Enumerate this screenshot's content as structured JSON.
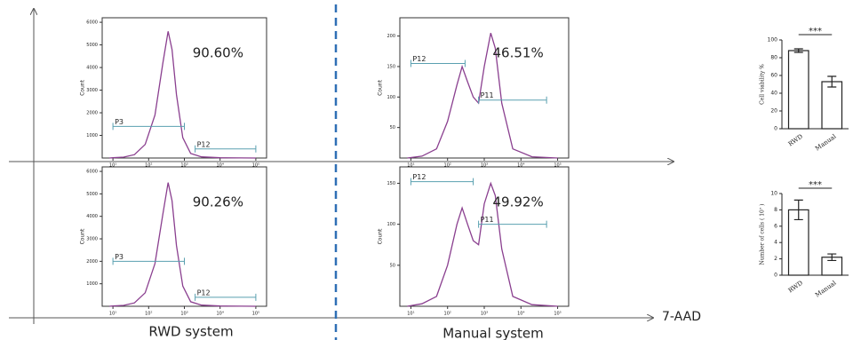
{
  "figure": {
    "x_axis_label": "7-AAD",
    "groups": [
      "RWD system",
      "Manual system"
    ]
  },
  "chart_data": [
    {
      "type": "line",
      "ylabel": "Count",
      "xscale": "log",
      "color": "#8a3f8f",
      "xlim": [
        5,
        200000
      ],
      "xticks": [
        {
          "value": 10,
          "label": "10¹"
        },
        {
          "value": 100,
          "label": "10²"
        },
        {
          "value": 1000,
          "label": "10³"
        },
        {
          "value": 10000,
          "label": "10⁴"
        },
        {
          "value": 100000,
          "label": "10⁵"
        }
      ],
      "ylim": [
        0,
        6200
      ],
      "yticks": [
        1000,
        2000,
        3000,
        4000,
        5000,
        6000
      ],
      "x": [
        8,
        10,
        20,
        40,
        80,
        150,
        250,
        350,
        450,
        600,
        900,
        1500,
        3000,
        10000,
        100000
      ],
      "values": [
        0,
        10,
        40,
        150,
        600,
        1900,
        4200,
        5600,
        4800,
        2800,
        900,
        200,
        50,
        10,
        0
      ],
      "gates": [
        {
          "label": "P3",
          "x": [
            10,
            1000
          ],
          "y": 1400
        },
        {
          "label": "P12",
          "x": [
            2000,
            100000
          ],
          "y": 400
        }
      ],
      "annotation": "90.60%"
    },
    {
      "type": "line",
      "ylabel": "Count",
      "xscale": "log",
      "color": "#8a3f8f",
      "xlim": [
        5,
        200000
      ],
      "xticks": [
        {
          "value": 10,
          "label": "10¹"
        },
        {
          "value": 100,
          "label": "10²"
        },
        {
          "value": 1000,
          "label": "10³"
        },
        {
          "value": 10000,
          "label": "10⁴"
        },
        {
          "value": 100000,
          "label": "10⁵"
        }
      ],
      "ylim": [
        0,
        230
      ],
      "yticks": [
        50,
        100,
        150,
        200
      ],
      "x": [
        8,
        20,
        50,
        100,
        180,
        250,
        350,
        500,
        700,
        1000,
        1500,
        2000,
        3000,
        6000,
        20000,
        100000
      ],
      "values": [
        0,
        3,
        15,
        60,
        120,
        150,
        125,
        100,
        90,
        150,
        205,
        180,
        90,
        15,
        2,
        0
      ],
      "gates": [
        {
          "label": "P12",
          "x": [
            10,
            300
          ],
          "y": 155
        },
        {
          "label": "P11",
          "x": [
            700,
            50000
          ],
          "y": 95
        }
      ],
      "annotation": "46.51%"
    },
    {
      "type": "line",
      "ylabel": "Count",
      "xscale": "log",
      "color": "#8a3f8f",
      "xlim": [
        5,
        200000
      ],
      "xticks": [
        {
          "value": 10,
          "label": "10¹"
        },
        {
          "value": 100,
          "label": "10²"
        },
        {
          "value": 1000,
          "label": "10³"
        },
        {
          "value": 10000,
          "label": "10⁴"
        },
        {
          "value": 100000,
          "label": "10⁵"
        }
      ],
      "ylim": [
        0,
        6200
      ],
      "yticks": [
        1000,
        2000,
        3000,
        4000,
        5000,
        6000
      ],
      "x": [
        8,
        10,
        20,
        40,
        80,
        150,
        250,
        350,
        450,
        600,
        900,
        1500,
        3000,
        10000,
        100000
      ],
      "values": [
        0,
        10,
        40,
        150,
        600,
        1900,
        4100,
        5500,
        4700,
        2700,
        900,
        200,
        50,
        10,
        0
      ],
      "gates": [
        {
          "label": "P3",
          "x": [
            10,
            1000
          ],
          "y": 2000
        },
        {
          "label": "P12",
          "x": [
            2000,
            100000
          ],
          "y": 400
        }
      ],
      "annotation": "90.26%"
    },
    {
      "type": "line",
      "ylabel": "Count",
      "xscale": "log",
      "color": "#8a3f8f",
      "xlim": [
        5,
        200000
      ],
      "xticks": [
        {
          "value": 10,
          "label": "10¹"
        },
        {
          "value": 100,
          "label": "10²"
        },
        {
          "value": 1000,
          "label": "10³"
        },
        {
          "value": 10000,
          "label": "10⁴"
        },
        {
          "value": 100000,
          "label": "10⁵"
        }
      ],
      "ylim": [
        0,
        170
      ],
      "yticks": [
        50,
        100,
        150
      ],
      "x": [
        8,
        20,
        50,
        100,
        180,
        250,
        350,
        500,
        700,
        1000,
        1500,
        2000,
        3000,
        6000,
        20000,
        100000
      ],
      "values": [
        0,
        3,
        12,
        50,
        100,
        120,
        100,
        80,
        75,
        125,
        150,
        135,
        70,
        12,
        2,
        0
      ],
      "gates": [
        {
          "label": "P12",
          "x": [
            10,
            500
          ],
          "y": 152
        },
        {
          "label": "P11",
          "x": [
            700,
            50000
          ],
          "y": 100
        }
      ],
      "annotation": "49.92%"
    },
    {
      "type": "bar",
      "ylabel": "Cell viability %",
      "color": "#ffffff",
      "categories": [
        "RWD",
        "Manual"
      ],
      "values": [
        88,
        53
      ],
      "errors": [
        2,
        6
      ],
      "ylim": [
        0,
        100
      ],
      "yticks": [
        0,
        20,
        40,
        60,
        80,
        100
      ],
      "significance": "***"
    },
    {
      "type": "bar",
      "ylabel": "Number of cells ( 10⁷ )",
      "color": "#ffffff",
      "categories": [
        "RWD",
        "Manual"
      ],
      "values": [
        8,
        2.2
      ],
      "errors": [
        1.2,
        0.4
      ],
      "ylim": [
        0,
        10
      ],
      "yticks": [
        0,
        2,
        4,
        6,
        8,
        10
      ],
      "significance": "***"
    }
  ]
}
